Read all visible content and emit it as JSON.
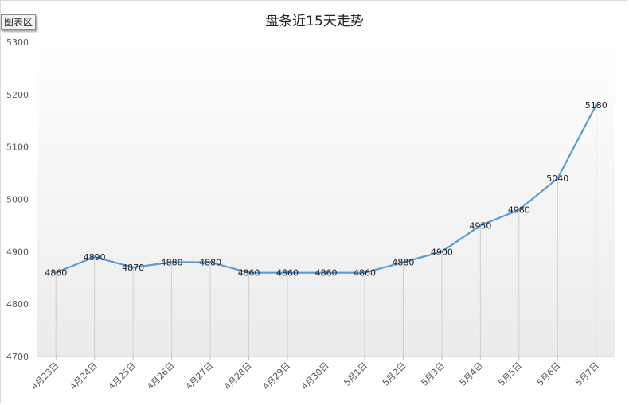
{
  "ui": {
    "area_tag": "图表区"
  },
  "chart_data": {
    "type": "line",
    "title": "盘条近15天走势",
    "categories": [
      "4月23日",
      "4月24日",
      "4月25日",
      "4月26日",
      "4月27日",
      "4月28日",
      "4月29日",
      "4月30日",
      "5月1日",
      "5月2日",
      "5月3日",
      "5月4日",
      "5月5日",
      "5月6日",
      "5月7日"
    ],
    "series": [
      {
        "values": [
          4860,
          4890,
          4870,
          4880,
          4880,
          4860,
          4860,
          4860,
          4860,
          4880,
          4900,
          4950,
          4980,
          5040,
          5180
        ]
      }
    ],
    "ylim": [
      4700,
      5300
    ],
    "yticks": [
      4700,
      4800,
      4900,
      5000,
      5100,
      5200,
      5300
    ],
    "ytick_labels": [
      "4700",
      "4800",
      "4900",
      "5000",
      "5100",
      "5200",
      "5300"
    ],
    "data_labels": [
      "4860",
      "4890",
      "4870",
      "4880",
      "4880",
      "4860",
      "4860",
      "4860",
      "4860",
      "4880",
      "4900",
      "4950",
      "4980",
      "5040",
      "5180"
    ],
    "line_color": "#5b9bd5",
    "grid": "vertical-at-categories",
    "legend": "none"
  }
}
